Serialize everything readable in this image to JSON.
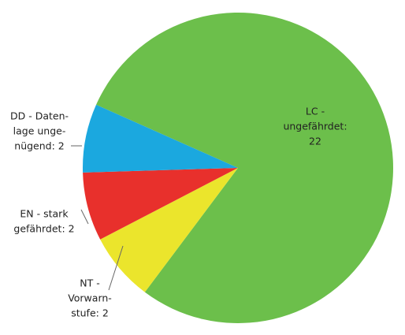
{
  "chart_data": {
    "type": "pie",
    "categories": [
      "LC",
      "NT",
      "EN",
      "DD"
    ],
    "values": [
      22,
      2,
      2,
      2
    ],
    "value_labels": [
      [
        "LC -",
        "ungefährdet:",
        "22"
      ],
      [
        "NT -",
        "Vorwarn-",
        "stufe: 2"
      ],
      [
        "EN - stark",
        "gefährdet: 2"
      ],
      [
        "DD - Daten-",
        "lage unge-",
        "nügend: 2"
      ]
    ],
    "colors": [
      "#6cbf4b",
      "#1ba8df",
      "#e8302c",
      "#ebe52c"
    ]
  }
}
